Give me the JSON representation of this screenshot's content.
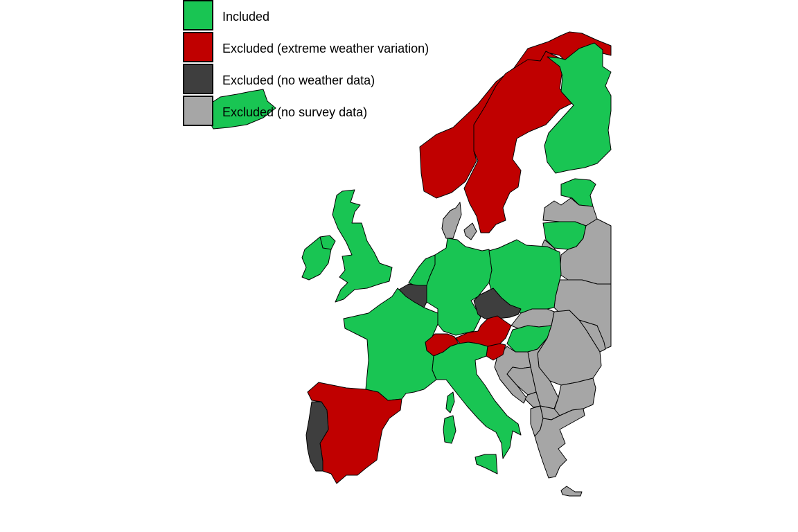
{
  "legend": {
    "items": [
      {
        "label": "Included",
        "category": "included",
        "color": "#19c553"
      },
      {
        "label": "Excluded (extreme weather variation)",
        "category": "extreme",
        "color": "#c00000"
      },
      {
        "label": "Excluded (no weather data)",
        "category": "noweather",
        "color": "#3e3e3e"
      },
      {
        "label": "Excluded (no survey data)",
        "category": "nosurvey",
        "color": "#a6a6a6"
      }
    ]
  },
  "regions": [
    {
      "id": "iceland",
      "category": "included"
    },
    {
      "id": "norway",
      "category": "extreme"
    },
    {
      "id": "sweden",
      "category": "extreme"
    },
    {
      "id": "finland",
      "category": "included"
    },
    {
      "id": "estonia",
      "category": "included"
    },
    {
      "id": "latvia",
      "category": "nosurvey"
    },
    {
      "id": "lithuania",
      "category": "included"
    },
    {
      "id": "denmark",
      "category": "nosurvey"
    },
    {
      "id": "denmark-zealand",
      "category": "nosurvey"
    },
    {
      "id": "great-britain",
      "category": "included"
    },
    {
      "id": "northern-ireland",
      "category": "included"
    },
    {
      "id": "ireland",
      "category": "included"
    },
    {
      "id": "netherlands",
      "category": "included"
    },
    {
      "id": "belgium",
      "category": "noweather"
    },
    {
      "id": "germany",
      "category": "included"
    },
    {
      "id": "poland",
      "category": "included"
    },
    {
      "id": "czechia",
      "category": "noweather"
    },
    {
      "id": "slovakia",
      "category": "nosurvey"
    },
    {
      "id": "hungary",
      "category": "included"
    },
    {
      "id": "austria",
      "category": "extreme"
    },
    {
      "id": "slovenia",
      "category": "extreme"
    },
    {
      "id": "switzerland",
      "category": "extreme"
    },
    {
      "id": "france",
      "category": "included"
    },
    {
      "id": "italy",
      "category": "included"
    },
    {
      "id": "sardinia",
      "category": "included"
    },
    {
      "id": "corsica",
      "category": "included"
    },
    {
      "id": "sicily",
      "category": "included"
    },
    {
      "id": "spain",
      "category": "extreme"
    },
    {
      "id": "portugal",
      "category": "noweather"
    },
    {
      "id": "belarus",
      "category": "nosurvey"
    },
    {
      "id": "ukraine",
      "category": "nosurvey"
    },
    {
      "id": "moldova",
      "category": "nosurvey"
    },
    {
      "id": "romania",
      "category": "nosurvey"
    },
    {
      "id": "bulgaria",
      "category": "nosurvey"
    },
    {
      "id": "croatia",
      "category": "nosurvey"
    },
    {
      "id": "bosnia",
      "category": "nosurvey"
    },
    {
      "id": "serbia",
      "category": "nosurvey"
    },
    {
      "id": "montenegro",
      "category": "nosurvey"
    },
    {
      "id": "albania",
      "category": "nosurvey"
    },
    {
      "id": "north-macedonia",
      "category": "nosurvey"
    },
    {
      "id": "greece",
      "category": "nosurvey"
    },
    {
      "id": "crete",
      "category": "nosurvey"
    },
    {
      "id": "kaliningrad",
      "category": "nosurvey"
    }
  ]
}
